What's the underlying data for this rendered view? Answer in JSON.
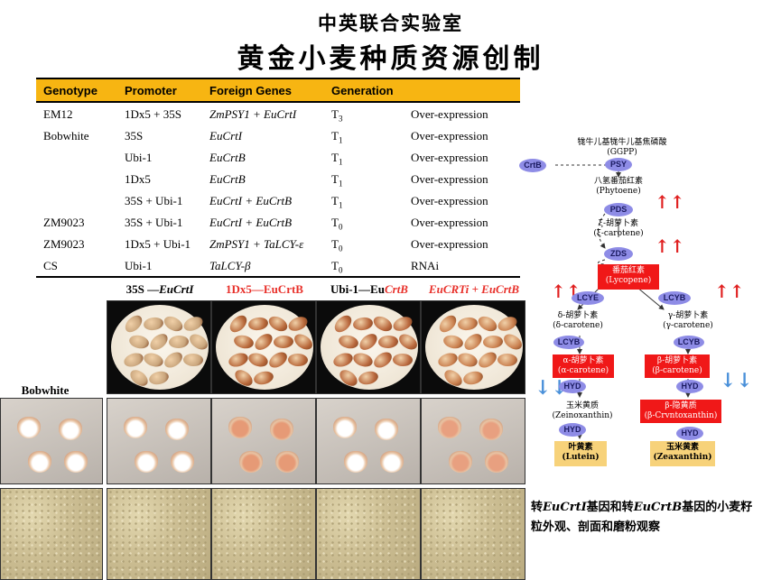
{
  "title_cn": "中英联合实验室",
  "subtitle_cn": "黄金小麦种质资源创制",
  "table": {
    "headers": [
      "Genotype",
      "Promoter",
      "Foreign Genes",
      "Generation",
      ""
    ],
    "rows": [
      {
        "genotype": "EM12",
        "promoter": "1Dx5 + 35S",
        "genes": "ZmPSY1 + EuCrtI",
        "gen_letter": "T",
        "gen_sub": "3",
        "type": "Over-expression"
      },
      {
        "genotype": "Bobwhite",
        "promoter": "35S",
        "genes": "EuCrtI",
        "gen_letter": "T",
        "gen_sub": "1",
        "type": "Over-expression"
      },
      {
        "genotype": "",
        "promoter": "Ubi-1",
        "genes": "EuCrtB",
        "gen_letter": "T",
        "gen_sub": "1",
        "type": "Over-expression"
      },
      {
        "genotype": "",
        "promoter": "1Dx5",
        "genes": "EuCrtB",
        "gen_letter": "T",
        "gen_sub": "1",
        "type": "Over-expression"
      },
      {
        "genotype": "",
        "promoter": "35S + Ubi-1",
        "genes": "EuCrtI + EuCrtB",
        "gen_letter": "T",
        "gen_sub": "1",
        "type": "Over-expression"
      },
      {
        "genotype": "ZM9023",
        "promoter": "35S + Ubi-1",
        "genes": "EuCrtI + EuCrtB",
        "gen_letter": "T",
        "gen_sub": "0",
        "type": "Over-expression"
      },
      {
        "genotype": "ZM9023",
        "promoter": "1Dx5 + Ubi-1",
        "genes": "ZmPSY1 + TaLCY-ε",
        "gen_letter": "T",
        "gen_sub": "0",
        "type": "Over-expression"
      },
      {
        "genotype": "CS",
        "promoter": "Ubi-1",
        "genes": "TaLCY-β",
        "gen_letter": "T",
        "gen_sub": "0",
        "type": "RNAi"
      }
    ]
  },
  "photos": {
    "bobwhite_label": "Bobwhite",
    "col1": {
      "prefix": "35S —",
      "gene": "EuCrtI"
    },
    "col2": {
      "label": "1Dx5—EuCrtB"
    },
    "col3": {
      "prefix": "Ubi-1—Eu",
      "gene": "CrtB"
    },
    "col4": {
      "label": "EuCRTi + EuCrtB"
    }
  },
  "pathway": {
    "ggpp_cn": "牻牛儿基牻牛儿基焦磷酸",
    "ggpp": "(GGPP)",
    "crtb": "CrtB",
    "psy": "PSY",
    "phytoene_cn": "八氢番茄红素",
    "phytoene": "(Phytoene)",
    "pds": "PDS",
    "zeta_cn": "ξ-胡萝卜素",
    "zeta": "(ξ-carotene)",
    "zds": "ZDS",
    "lycopene_cn": "番茄红素",
    "lycopene": "(Lycopene)",
    "lcye": "LCYE",
    "lcyb": "LCYB",
    "delta_cn": "δ-胡萝卜素",
    "delta": "(δ-carotene)",
    "gamma_cn": "γ-胡萝卜素",
    "gamma": "(γ-carotene)",
    "lcyb2": "LCYB",
    "lcyb3": "LCYB",
    "alpha_cn": "α-胡萝卜素",
    "alpha": "(α-carotene)",
    "beta_cn": "β-胡萝卜素",
    "beta": "(β-carotene)",
    "hyd1": "HYD",
    "hyd2": "HYD",
    "zein_cn": "玉米黄质",
    "zein": "(Zeinoxanthin)",
    "bcry_cn": "β-隐黄质",
    "bcry": "(β-Crvntoxanthin)",
    "hyd3": "HYD",
    "hyd4": "HYD",
    "lutein_cn": "叶黄素",
    "lutein": "(Lutein)",
    "zea_cn": "玉米黄素",
    "zea": "(Zeaxanthin)",
    "up_arrow": "↑↑",
    "down_arrow": "↓↓"
  },
  "caption": {
    "p1": "转",
    "g1": "EuCrtI",
    "p2": "基因和转",
    "g2": "EuCrtB",
    "p3": "基因的小麦籽",
    "line2": "粒外观、剖面和磨粉观察"
  },
  "colors": {
    "header_bg": "#f7b512",
    "red_label": "#e8302a",
    "enzyme": "#8e8ce6",
    "pathway_red": "#f01818",
    "pathway_yellow": "#f7d27a",
    "down_arrow": "#4a90d9"
  }
}
